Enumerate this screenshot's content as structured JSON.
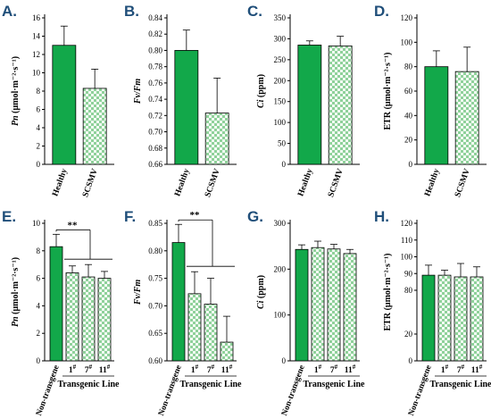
{
  "colors": {
    "healthy": "#12a84a",
    "pattern_fg": "#8fd19a",
    "pattern_bg": "#f4fbf5",
    "axis": "#000000"
  },
  "chart_data": [
    {
      "type": "bar",
      "panel": "A.",
      "ylabel_italic": "Pn",
      "ylabel_rest": " (μmol·m⁻²·s⁻¹)",
      "categories": [
        "Healthy",
        "SCSMV"
      ],
      "values": [
        13.0,
        8.3
      ],
      "errors": [
        2.1,
        2.1
      ],
      "ylim": [
        0,
        16
      ],
      "yticks": [
        "0",
        "2",
        "4",
        "6",
        "8",
        "10",
        "12",
        "14",
        "16"
      ],
      "ytick_values": [
        0,
        2,
        4,
        6,
        8,
        10,
        12,
        14,
        16
      ],
      "group_label": "",
      "significance": ""
    },
    {
      "type": "bar",
      "panel": "B.",
      "ylabel_italic": "Fv/Fm",
      "ylabel_rest": "",
      "categories": [
        "Healthy",
        "SCSMV"
      ],
      "values": [
        0.8,
        0.723
      ],
      "errors": [
        0.025,
        0.043
      ],
      "ylim": [
        0.66,
        0.84
      ],
      "yticks": [
        "0.66",
        "0.68",
        "0.70",
        "0.72",
        "0.74",
        "0.76",
        "0.78",
        "0.80",
        "0.82",
        "0.84"
      ],
      "ytick_values": [
        0.66,
        0.68,
        0.7,
        0.72,
        0.74,
        0.76,
        0.78,
        0.8,
        0.82,
        0.84
      ],
      "group_label": "",
      "significance": ""
    },
    {
      "type": "bar",
      "panel": "C.",
      "ylabel_italic": "Ci",
      "ylabel_rest": " (ppm)",
      "categories": [
        "Healthy",
        "SCSMV"
      ],
      "values": [
        285,
        283
      ],
      "errors": [
        10,
        23
      ],
      "ylim": [
        0,
        350
      ],
      "yticks": [
        "0",
        "50",
        "100",
        "150",
        "200",
        "250",
        "300",
        "350"
      ],
      "ytick_values": [
        0,
        50,
        100,
        150,
        200,
        250,
        300,
        350
      ],
      "group_label": "",
      "significance": ""
    },
    {
      "type": "bar",
      "panel": "D.",
      "ylabel_italic": "",
      "ylabel_rest": "ETR (μmol·m⁻²·s⁻¹)",
      "categories": [
        "Healthy",
        "SCSMV"
      ],
      "values": [
        80,
        76
      ],
      "errors": [
        13,
        20
      ],
      "ylim": [
        0,
        120
      ],
      "yticks": [
        "0",
        "20",
        "40",
        "60",
        "80",
        "100",
        "120"
      ],
      "ytick_values": [
        0,
        20,
        40,
        60,
        80,
        100,
        120
      ],
      "group_label": "",
      "significance": ""
    },
    {
      "type": "bar",
      "panel": "E.",
      "ylabel_italic": "Pn",
      "ylabel_rest": " (μmol·m⁻²·s⁻¹)",
      "categories": [
        "Non-transgene",
        "1#",
        "7#",
        "11#"
      ],
      "values": [
        8.3,
        6.4,
        6.1,
        6.0
      ],
      "errors": [
        0.9,
        0.5,
        0.9,
        0.5
      ],
      "ylim": [
        0,
        10
      ],
      "yticks": [
        "0",
        "2",
        "4",
        "6",
        "8",
        "10"
      ],
      "ytick_values": [
        0,
        2,
        4,
        6,
        8,
        10
      ],
      "group_label": "Transgenic Line",
      "significance": "**"
    },
    {
      "type": "bar",
      "panel": "F.",
      "ylabel_italic": "Fv/Fm",
      "ylabel_rest": "",
      "categories": [
        "Non-transgene",
        "1#",
        "7#",
        "11#"
      ],
      "values": [
        0.815,
        0.722,
        0.703,
        0.634
      ],
      "errors": [
        0.033,
        0.04,
        0.047,
        0.047
      ],
      "ylim": [
        0.6,
        0.85
      ],
      "yticks": [
        "0.60",
        "0.65",
        "0.70",
        "0.75",
        "0.80",
        "0.85"
      ],
      "ytick_values": [
        0.6,
        0.65,
        0.7,
        0.75,
        0.8,
        0.85
      ],
      "group_label": "Transgenic Line",
      "significance": "**"
    },
    {
      "type": "bar",
      "panel": "G.",
      "ylabel_italic": "Ci",
      "ylabel_rest": " (ppm)",
      "categories": [
        "Non-transgene",
        "1#",
        "7#",
        "11#"
      ],
      "values": [
        243,
        247,
        244,
        234
      ],
      "errors": [
        10,
        14,
        10,
        9
      ],
      "ylim": [
        0,
        300
      ],
      "yticks": [
        "0",
        "100",
        "200",
        "300"
      ],
      "ytick_values": [
        0,
        100,
        200,
        300
      ],
      "group_label": "Transgenic Line",
      "significance": ""
    },
    {
      "type": "bar",
      "panel": "H.",
      "ylabel_italic": "",
      "ylabel_rest": "ETR (μmol·m⁻²·s⁻¹)",
      "categories": [
        "Non-transgene",
        "1#",
        "7#",
        "11#"
      ],
      "values": [
        89,
        89,
        88,
        88
      ],
      "errors": [
        6,
        3,
        8,
        6
      ],
      "ylim": [
        0,
        120
      ],
      "yticks": [
        "0",
        "20",
        "80",
        "90",
        "100",
        "110",
        "120"
      ],
      "ytick_values": [
        0,
        20,
        80,
        90,
        100,
        110,
        120
      ],
      "group_label": "Transgenic Line",
      "significance": ""
    }
  ]
}
